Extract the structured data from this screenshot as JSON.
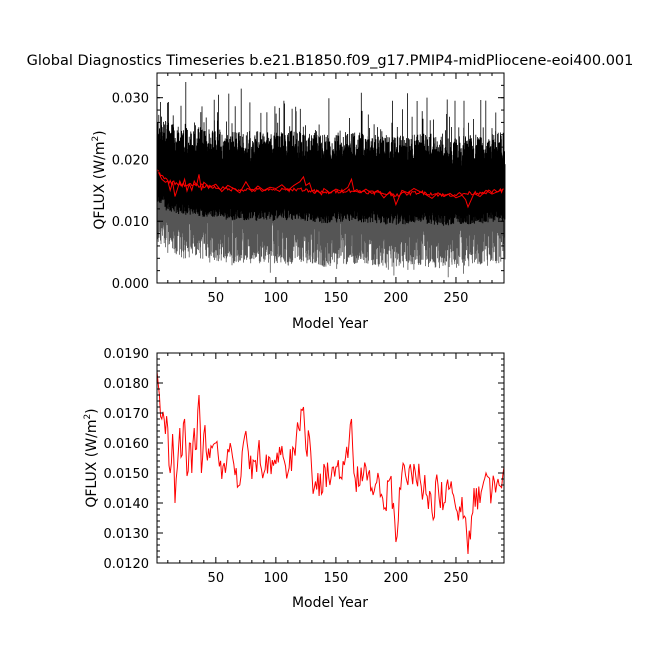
{
  "page": {
    "title": "Global Diagnostics Timeseries b.e21.B1850.f09_g17.PMIP4-midPliocene-eoi400.001"
  },
  "chart_data": [
    {
      "type": "line",
      "title": "Global Diagnostics Timeseries b.e21.B1850.f09_g17.PMIP4-midPliocene-eoi400.001",
      "xlabel": "Model Year",
      "ylabel": "QFLUX (W/m²)",
      "ylabel_parts": [
        "QFLUX (W/m",
        "2",
        ")"
      ],
      "xlim": [
        1,
        290
      ],
      "ylim": [
        0.0,
        0.034
      ],
      "xticks": [
        50,
        100,
        150,
        200,
        250
      ],
      "xtick_labels": [
        "50",
        "100",
        "150",
        "200",
        "250"
      ],
      "yticks": [
        0.0,
        0.01,
        0.02,
        0.03
      ],
      "ytick_labels": [
        "0.000",
        "0.010",
        "0.020",
        "0.030"
      ],
      "grid": false,
      "legend": "none",
      "colors": {
        "monthly_max": "#000000",
        "monthly_min": "#555555",
        "annual": "#ff0000"
      },
      "series": [
        {
          "role": "monthly envelope (max)",
          "x_range": [
            1,
            290
          ],
          "typical_range": [
            0.014,
            0.025
          ],
          "peaks_to": 0.033
        },
        {
          "role": "monthly envelope (min)",
          "x_range": [
            1,
            290
          ],
          "typical_range": [
            0.002,
            0.012
          ],
          "lows_to": 0.001
        },
        {
          "role": "annual mean",
          "x": [
            1,
            10,
            20,
            40,
            60,
            80,
            100,
            120,
            140,
            160,
            180,
            200,
            220,
            240,
            260,
            280,
            290
          ],
          "values": [
            0.0182,
            0.0165,
            0.016,
            0.0157,
            0.0152,
            0.0151,
            0.015,
            0.0152,
            0.0146,
            0.015,
            0.0147,
            0.0143,
            0.0147,
            0.0142,
            0.0145,
            0.0148,
            0.015
          ]
        }
      ]
    },
    {
      "type": "line",
      "title": "",
      "xlabel": "Model Year",
      "ylabel": "QFLUX (W/m²)",
      "ylabel_parts": [
        "QFLUX (W/m",
        "2",
        ")"
      ],
      "xlim": [
        1,
        290
      ],
      "ylim": [
        0.012,
        0.019
      ],
      "xticks": [
        50,
        100,
        150,
        200,
        250
      ],
      "xtick_labels": [
        "50",
        "100",
        "150",
        "200",
        "250"
      ],
      "yticks": [
        0.012,
        0.013,
        0.014,
        0.015,
        0.016,
        0.017,
        0.018,
        0.019
      ],
      "ytick_labels": [
        "0.0120",
        "0.0130",
        "0.0140",
        "0.0150",
        "0.0160",
        "0.0170",
        "0.0180",
        "0.0190"
      ],
      "grid": false,
      "legend": "none",
      "colors": {
        "annual": "#ff0000"
      },
      "series": [
        {
          "role": "annual mean",
          "x": [
            1,
            3,
            5,
            8,
            10,
            12,
            14,
            16,
            18,
            20,
            22,
            24,
            26,
            28,
            30,
            32,
            34,
            36,
            38,
            40,
            45,
            50,
            55,
            60,
            65,
            70,
            75,
            80,
            85,
            90,
            95,
            100,
            105,
            110,
            115,
            120,
            123,
            125,
            128,
            130,
            132,
            135,
            138,
            140,
            145,
            150,
            155,
            160,
            163,
            165,
            170,
            175,
            180,
            185,
            190,
            195,
            198,
            200,
            205,
            210,
            215,
            220,
            225,
            230,
            235,
            240,
            245,
            250,
            255,
            258,
            260,
            265,
            270,
            275,
            280,
            285,
            290
          ],
          "values": [
            0.0184,
            0.0176,
            0.0168,
            0.0163,
            0.0165,
            0.015,
            0.0163,
            0.014,
            0.0152,
            0.0165,
            0.0156,
            0.0168,
            0.0149,
            0.016,
            0.015,
            0.0165,
            0.0158,
            0.0176,
            0.015,
            0.0163,
            0.0155,
            0.016,
            0.0148,
            0.0158,
            0.0153,
            0.0146,
            0.0164,
            0.0148,
            0.0157,
            0.015,
            0.0155,
            0.0153,
            0.0159,
            0.015,
            0.0158,
            0.0164,
            0.0172,
            0.0158,
            0.0162,
            0.015,
            0.0145,
            0.015,
            0.0143,
            0.0153,
            0.0146,
            0.0152,
            0.0148,
            0.0155,
            0.0168,
            0.015,
            0.0146,
            0.0152,
            0.0145,
            0.015,
            0.0138,
            0.0148,
            0.014,
            0.0127,
            0.015,
            0.0146,
            0.0153,
            0.0148,
            0.0143,
            0.0137,
            0.0146,
            0.014,
            0.0145,
            0.0138,
            0.0142,
            0.0135,
            0.0123,
            0.0145,
            0.014,
            0.015,
            0.0144,
            0.0148,
            0.0152
          ]
        }
      ]
    }
  ]
}
